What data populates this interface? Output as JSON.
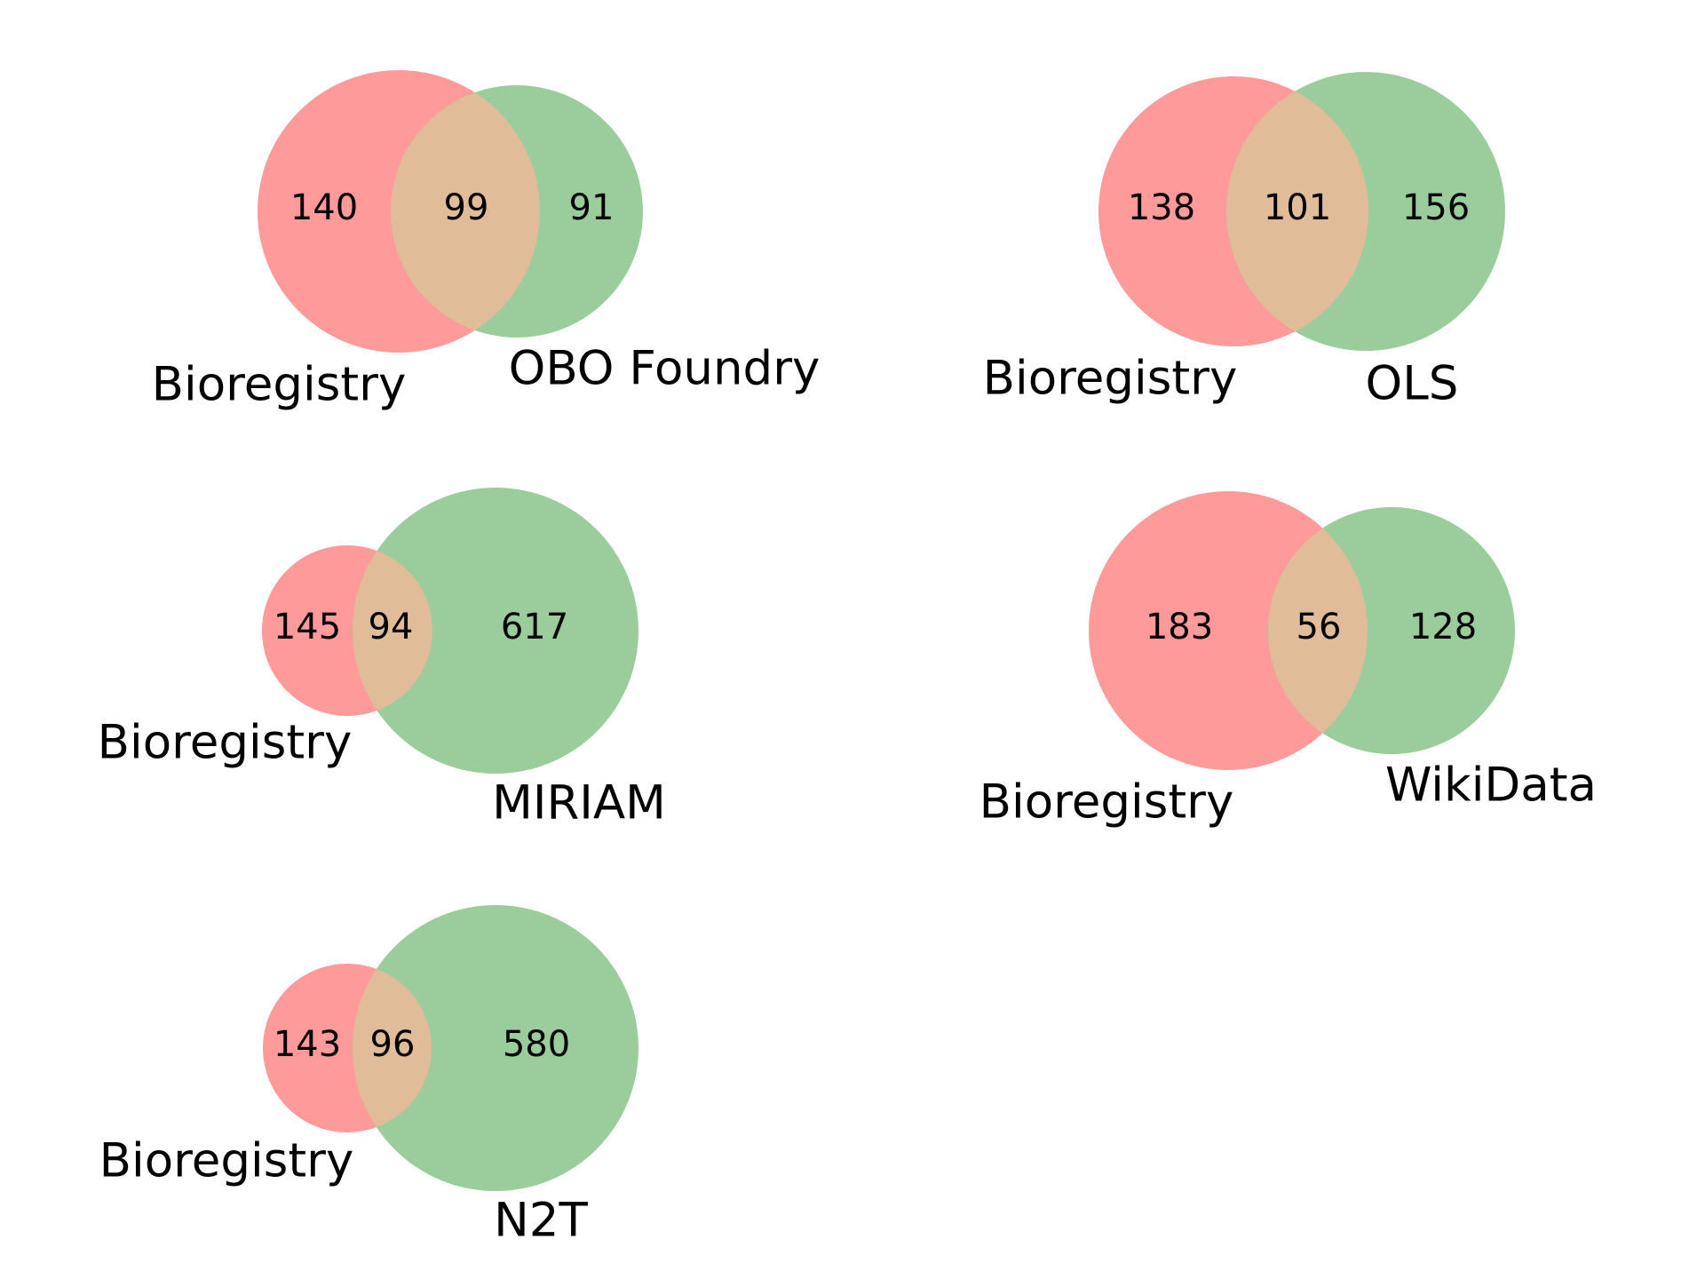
{
  "colors": {
    "set_a": "#ff9a9a",
    "set_b": "#9bcc9b",
    "overlap": "#e0bc99"
  },
  "diagrams": [
    {
      "set_a": "Bioregistry",
      "set_b": "OBO Foundry",
      "only_a": 140,
      "both": 99,
      "only_b": 91
    },
    {
      "set_a": "Bioregistry",
      "set_b": "OLS",
      "only_a": 138,
      "both": 101,
      "only_b": 156
    },
    {
      "set_a": "Bioregistry",
      "set_b": "MIRIAM",
      "only_a": 145,
      "both": 94,
      "only_b": 617
    },
    {
      "set_a": "Bioregistry",
      "set_b": "WikiData",
      "only_a": 183,
      "both": 56,
      "only_b": 128
    },
    {
      "set_a": "Bioregistry",
      "set_b": "N2T",
      "only_a": 143,
      "both": 96,
      "only_b": 580
    }
  ]
}
